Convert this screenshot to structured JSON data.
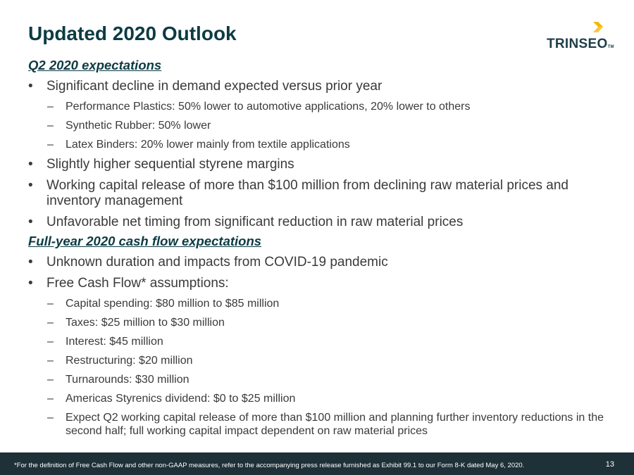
{
  "slide": {
    "title": "Updated 2020 Outlook",
    "page_number": "13"
  },
  "logo": {
    "text": "TRINSEO",
    "tm": "TM",
    "accent_color": "#F5B800"
  },
  "sections": {
    "q2": {
      "heading": "Q2 2020 expectations",
      "b1": "Significant decline in demand expected versus prior year",
      "b1_sub": [
        "Performance Plastics: 50% lower to automotive applications, 20% lower to others",
        "Synthetic Rubber: 50% lower",
        "Latex Binders: 20% lower mainly from textile applications"
      ],
      "b2": "Slightly higher sequential styrene margins",
      "b3": "Working capital release of more than $100 million from declining raw material prices and inventory management",
      "b4": "Unfavorable net timing from significant reduction in raw material prices"
    },
    "fy": {
      "heading": "Full-year 2020 cash flow expectations",
      "b1": "Unknown duration and impacts from COVID-19 pandemic",
      "b2": "Free Cash Flow* assumptions:",
      "b2_sub": [
        "Capital spending: $80 million to $85 million",
        "Taxes: $25 million to $30 million",
        "Interest: $45 million",
        "Restructuring: $20 million",
        "Turnarounds: $30 million",
        "Americas Styrenics dividend: $0 to $25 million",
        "Expect Q2 working capital release of more than $100 million and planning further inventory reductions in the second half; full working capital impact dependent on raw material prices"
      ]
    }
  },
  "markers": {
    "bullet": "•",
    "dash": "–"
  },
  "footer": {
    "footnote": "*For the definition of Free Cash Flow and other non-GAAP measures, refer to the accompanying press release furnished as Exhibit 99.1 to our Form 8-K dated May 6, 2020."
  }
}
